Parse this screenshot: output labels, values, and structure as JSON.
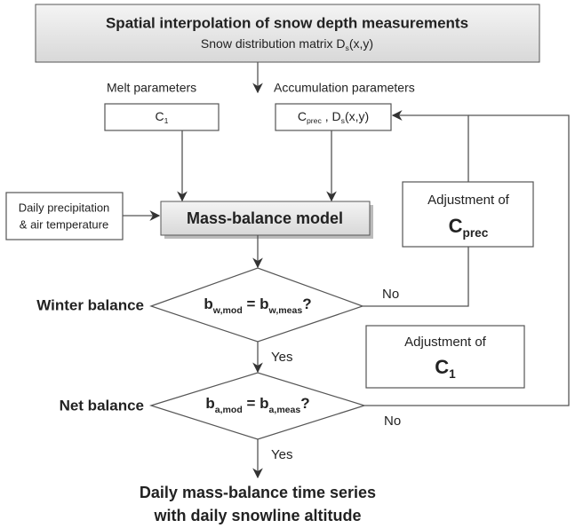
{
  "top_box": {
    "title": "Spatial interpolation of snow depth measurements",
    "subtitle": [
      {
        "t": "Snow distribution matrix D"
      },
      {
        "sub": "s"
      },
      {
        "t": "(x,y)"
      }
    ]
  },
  "labels": {
    "melt_parameters": "Melt parameters",
    "accumulation_parameters": "Accumulation parameters"
  },
  "melt_box": [
    {
      "t": "C"
    },
    {
      "sub": "1"
    }
  ],
  "accumulation_box": [
    {
      "t": "C"
    },
    {
      "sub": "prec"
    },
    {
      "t": " , D"
    },
    {
      "sub": "s"
    },
    {
      "t": "(x,y)"
    }
  ],
  "input_box": {
    "line1": "Daily precipitation",
    "line2": "& air temperature"
  },
  "model_box": "Mass-balance model",
  "adjust_prec": {
    "line1": "Adjustment of",
    "line2": [
      {
        "t": "C"
      },
      {
        "sub": "prec"
      }
    ]
  },
  "adjust_melt": {
    "line1": "Adjustment of",
    "line2": [
      {
        "t": "C"
      },
      {
        "sub": "1"
      }
    ]
  },
  "winter_check": {
    "label": "Winter balance",
    "condition": [
      {
        "t": "b"
      },
      {
        "sub": "w,mod"
      },
      {
        "t": " = b"
      },
      {
        "sub": "w,meas"
      },
      {
        "t": "?"
      }
    ],
    "no": "No",
    "yes": "Yes"
  },
  "net_check": {
    "label": "Net balance",
    "condition": [
      {
        "t": "b"
      },
      {
        "sub": "a,mod"
      },
      {
        "t": " = b"
      },
      {
        "sub": "a,meas"
      },
      {
        "t": "?"
      }
    ],
    "no": "No",
    "yes": "Yes"
  },
  "output": {
    "line1": "Daily mass-balance time series",
    "line2": "with daily snowline altitude"
  }
}
